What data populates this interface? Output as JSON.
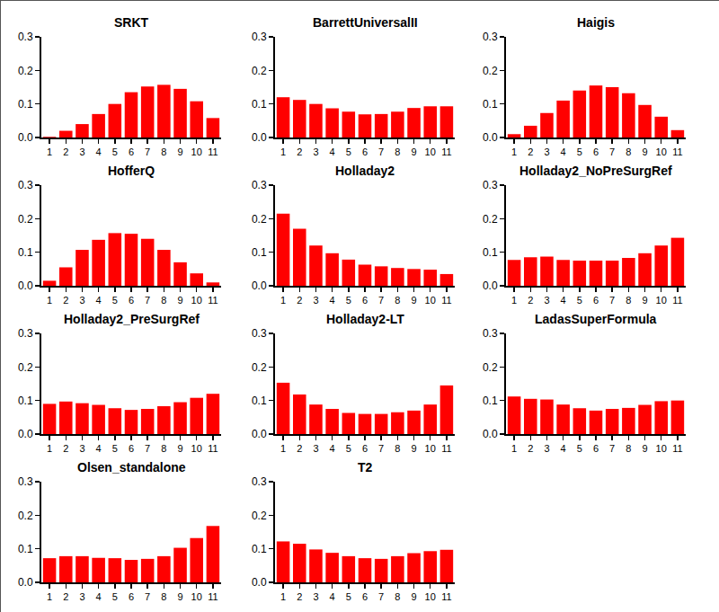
{
  "chart_data": [
    {
      "type": "bar",
      "title": "SRKT",
      "categories": [
        "1",
        "2",
        "3",
        "4",
        "5",
        "6",
        "7",
        "8",
        "9",
        "10",
        "11"
      ],
      "values": [
        0.002,
        0.02,
        0.04,
        0.07,
        0.1,
        0.135,
        0.152,
        0.157,
        0.145,
        0.108,
        0.058
      ],
      "color": "#ff0000",
      "ylim": [
        0,
        0.3
      ],
      "yticks": [
        {
          "value": 0,
          "label": "0.0"
        },
        {
          "value": 0.1,
          "label": "0.1"
        },
        {
          "value": 0.2,
          "label": "0.2"
        },
        {
          "value": 0.3,
          "label": "0.3"
        }
      ],
      "grid": false
    },
    {
      "type": "bar",
      "title": "BarrettUniversalII",
      "categories": [
        "1",
        "2",
        "3",
        "4",
        "5",
        "6",
        "7",
        "8",
        "9",
        "10",
        "11"
      ],
      "values": [
        0.12,
        0.112,
        0.1,
        0.087,
        0.077,
        0.069,
        0.07,
        0.077,
        0.088,
        0.093,
        0.093
      ],
      "color": "#ff0000",
      "ylim": [
        0,
        0.3
      ],
      "yticks": [
        {
          "value": 0,
          "label": "0.0"
        },
        {
          "value": 0.1,
          "label": "0.1"
        },
        {
          "value": 0.2,
          "label": "0.2"
        },
        {
          "value": 0.3,
          "label": "0.3"
        }
      ],
      "grid": false
    },
    {
      "type": "bar",
      "title": "Haigis",
      "categories": [
        "1",
        "2",
        "3",
        "4",
        "5",
        "6",
        "7",
        "8",
        "9",
        "10",
        "11"
      ],
      "values": [
        0.01,
        0.035,
        0.073,
        0.11,
        0.14,
        0.155,
        0.15,
        0.132,
        0.097,
        0.062,
        0.022
      ],
      "color": "#ff0000",
      "ylim": [
        0,
        0.3
      ],
      "yticks": [
        {
          "value": 0,
          "label": "0.0"
        },
        {
          "value": 0.1,
          "label": "0.1"
        },
        {
          "value": 0.2,
          "label": "0.2"
        },
        {
          "value": 0.3,
          "label": "0.3"
        }
      ],
      "grid": false
    },
    {
      "type": "bar",
      "title": "HofferQ",
      "categories": [
        "1",
        "2",
        "3",
        "4",
        "5",
        "6",
        "7",
        "8",
        "9",
        "10",
        "11"
      ],
      "values": [
        0.015,
        0.055,
        0.107,
        0.137,
        0.157,
        0.155,
        0.14,
        0.107,
        0.07,
        0.037,
        0.01
      ],
      "color": "#ff0000",
      "ylim": [
        0,
        0.3
      ],
      "yticks": [
        {
          "value": 0,
          "label": "0.0"
        },
        {
          "value": 0.1,
          "label": "0.1"
        },
        {
          "value": 0.2,
          "label": "0.2"
        },
        {
          "value": 0.3,
          "label": "0.3"
        }
      ],
      "grid": false
    },
    {
      "type": "bar",
      "title": "Holladay2",
      "categories": [
        "1",
        "2",
        "3",
        "4",
        "5",
        "6",
        "7",
        "8",
        "9",
        "10",
        "11"
      ],
      "values": [
        0.215,
        0.17,
        0.12,
        0.097,
        0.078,
        0.063,
        0.058,
        0.053,
        0.05,
        0.048,
        0.035
      ],
      "color": "#ff0000",
      "ylim": [
        0,
        0.3
      ],
      "yticks": [
        {
          "value": 0,
          "label": "0.0"
        },
        {
          "value": 0.1,
          "label": "0.1"
        },
        {
          "value": 0.2,
          "label": "0.2"
        },
        {
          "value": 0.3,
          "label": "0.3"
        }
      ],
      "grid": false
    },
    {
      "type": "bar",
      "title": "Holladay2_NoPreSurgRef",
      "categories": [
        "1",
        "2",
        "3",
        "4",
        "5",
        "6",
        "7",
        "8",
        "9",
        "10",
        "11"
      ],
      "values": [
        0.077,
        0.085,
        0.087,
        0.077,
        0.075,
        0.075,
        0.075,
        0.083,
        0.097,
        0.12,
        0.143
      ],
      "color": "#ff0000",
      "ylim": [
        0,
        0.3
      ],
      "yticks": [
        {
          "value": 0,
          "label": "0.0"
        },
        {
          "value": 0.1,
          "label": "0.1"
        },
        {
          "value": 0.2,
          "label": "0.2"
        },
        {
          "value": 0.3,
          "label": "0.3"
        }
      ],
      "grid": false
    },
    {
      "type": "bar",
      "title": "Holladay2_PreSurgRef",
      "categories": [
        "1",
        "2",
        "3",
        "4",
        "5",
        "6",
        "7",
        "8",
        "9",
        "10",
        "11"
      ],
      "values": [
        0.09,
        0.097,
        0.092,
        0.087,
        0.077,
        0.072,
        0.075,
        0.083,
        0.095,
        0.108,
        0.12
      ],
      "color": "#ff0000",
      "ylim": [
        0,
        0.3
      ],
      "yticks": [
        {
          "value": 0,
          "label": "0.0"
        },
        {
          "value": 0.1,
          "label": "0.1"
        },
        {
          "value": 0.2,
          "label": "0.2"
        },
        {
          "value": 0.3,
          "label": "0.3"
        }
      ],
      "grid": false
    },
    {
      "type": "bar",
      "title": "Holladay2-LT",
      "categories": [
        "1",
        "2",
        "3",
        "4",
        "5",
        "6",
        "7",
        "8",
        "9",
        "10",
        "11"
      ],
      "values": [
        0.153,
        0.118,
        0.088,
        0.075,
        0.063,
        0.06,
        0.06,
        0.065,
        0.07,
        0.088,
        0.145
      ],
      "color": "#ff0000",
      "ylim": [
        0,
        0.3
      ],
      "yticks": [
        {
          "value": 0,
          "label": "0.0"
        },
        {
          "value": 0.1,
          "label": "0.1"
        },
        {
          "value": 0.2,
          "label": "0.2"
        },
        {
          "value": 0.3,
          "label": "0.3"
        }
      ],
      "grid": false
    },
    {
      "type": "bar",
      "title": "LadasSuperFormula",
      "categories": [
        "1",
        "2",
        "3",
        "4",
        "5",
        "6",
        "7",
        "8",
        "9",
        "10",
        "11"
      ],
      "values": [
        0.112,
        0.105,
        0.103,
        0.088,
        0.077,
        0.07,
        0.075,
        0.078,
        0.087,
        0.098,
        0.1
      ],
      "color": "#ff0000",
      "ylim": [
        0,
        0.3
      ],
      "yticks": [
        {
          "value": 0,
          "label": "0.0"
        },
        {
          "value": 0.1,
          "label": "0.1"
        },
        {
          "value": 0.2,
          "label": "0.2"
        },
        {
          "value": 0.3,
          "label": "0.3"
        }
      ],
      "grid": false
    },
    {
      "type": "bar",
      "title": "Olsen_standalone",
      "categories": [
        "1",
        "2",
        "3",
        "4",
        "5",
        "6",
        "7",
        "8",
        "9",
        "10",
        "11"
      ],
      "values": [
        0.072,
        0.078,
        0.078,
        0.073,
        0.072,
        0.067,
        0.07,
        0.078,
        0.103,
        0.132,
        0.168
      ],
      "color": "#ff0000",
      "ylim": [
        0,
        0.3
      ],
      "yticks": [
        {
          "value": 0,
          "label": "0.0"
        },
        {
          "value": 0.1,
          "label": "0.1"
        },
        {
          "value": 0.2,
          "label": "0.2"
        },
        {
          "value": 0.3,
          "label": "0.3"
        }
      ],
      "grid": false
    },
    {
      "type": "bar",
      "title": "T2",
      "categories": [
        "1",
        "2",
        "3",
        "4",
        "5",
        "6",
        "7",
        "8",
        "9",
        "10",
        "11"
      ],
      "values": [
        0.122,
        0.115,
        0.098,
        0.088,
        0.078,
        0.072,
        0.07,
        0.078,
        0.087,
        0.093,
        0.097
      ],
      "color": "#ff0000",
      "ylim": [
        0,
        0.3
      ],
      "yticks": [
        {
          "value": 0,
          "label": "0.0"
        },
        {
          "value": 0.1,
          "label": "0.1"
        },
        {
          "value": 0.2,
          "label": "0.2"
        },
        {
          "value": 0.3,
          "label": "0.3"
        }
      ],
      "grid": false
    }
  ]
}
